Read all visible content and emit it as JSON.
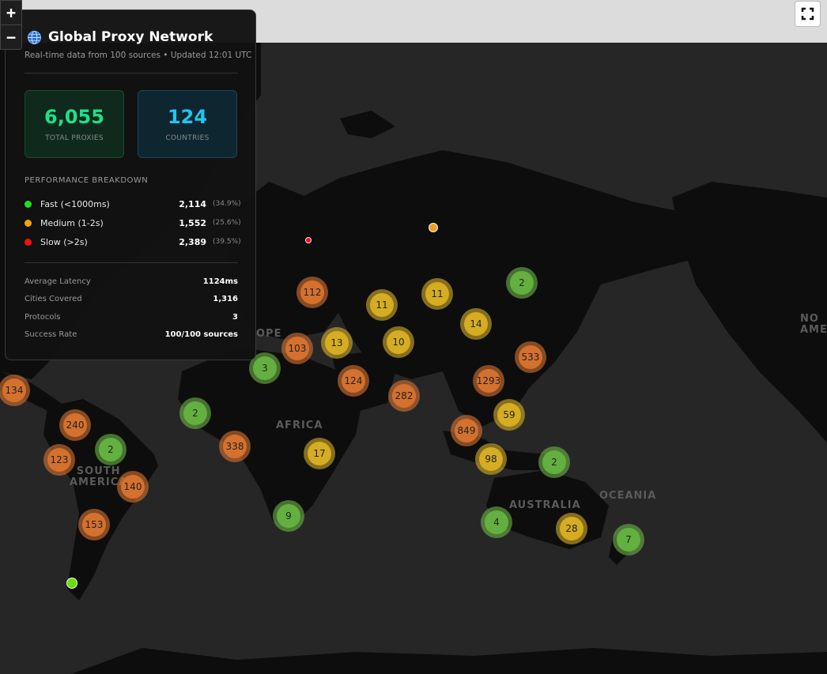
{
  "panel": {
    "title": "Global Proxy Network",
    "subtitle": "Real-time data from 100 sources • Updated 12:01 UTC",
    "stats": [
      {
        "value": "6,055",
        "label": "TOTAL PROXIES",
        "color": "#1ee08a"
      },
      {
        "value": "124",
        "label": "COUNTRIES",
        "color": "#22c4f0"
      }
    ],
    "performance_title": "PERFORMANCE BREAKDOWN",
    "performance": [
      {
        "label": "Fast (<1000ms)",
        "count": "2,114",
        "pct": "(34.9%)",
        "color": "#22dd22"
      },
      {
        "label": "Medium (1-2s)",
        "count": "1,552",
        "pct": "(25.6%)",
        "color": "#f2a20c"
      },
      {
        "label": "Slow (>2s)",
        "count": "2,389",
        "pct": "(39.5%)",
        "color": "#ee1111"
      }
    ],
    "info": [
      {
        "label": "Average Latency",
        "value": "1124ms"
      },
      {
        "label": "Cities Covered",
        "value": "1,316"
      },
      {
        "label": "Protocols",
        "value": "3"
      },
      {
        "label": "Success Rate",
        "value": "100/100 sources"
      }
    ]
  },
  "controls": {
    "zoom_in": "+",
    "zoom_out": "−"
  },
  "map_labels": {
    "europe": "OPE",
    "africa": "AFRICA",
    "south_america": "SOUTH\nAMERICA",
    "australia": "AUSTRALIA",
    "oceania": "OCEANIA",
    "north_america": "NO\nAME"
  },
  "clusters": [
    {
      "label": "112",
      "level": "slow"
    },
    {
      "label": "11",
      "level": "medium"
    },
    {
      "label": "11",
      "level": "medium"
    },
    {
      "label": "2",
      "level": "fast"
    },
    {
      "label": "14",
      "level": "medium"
    },
    {
      "label": "103",
      "level": "slow"
    },
    {
      "label": "13",
      "level": "medium"
    },
    {
      "label": "10",
      "level": "medium"
    },
    {
      "label": "533",
      "level": "slow"
    },
    {
      "label": "3",
      "level": "fast"
    },
    {
      "label": "124",
      "level": "slow"
    },
    {
      "label": "282",
      "level": "slow"
    },
    {
      "label": "1293",
      "level": "slow"
    },
    {
      "label": "134",
      "level": "slow"
    },
    {
      "label": "2",
      "level": "fast"
    },
    {
      "label": "59",
      "level": "medium"
    },
    {
      "label": "240",
      "level": "slow"
    },
    {
      "label": "849",
      "level": "slow"
    },
    {
      "label": "338",
      "level": "slow"
    },
    {
      "label": "17",
      "level": "medium"
    },
    {
      "label": "2",
      "level": "fast"
    },
    {
      "label": "123",
      "level": "slow"
    },
    {
      "label": "98",
      "level": "medium"
    },
    {
      "label": "2",
      "level": "fast"
    },
    {
      "label": "140",
      "level": "slow"
    },
    {
      "label": "9",
      "level": "fast"
    },
    {
      "label": "4",
      "level": "fast"
    },
    {
      "label": "28",
      "level": "medium"
    },
    {
      "label": "153",
      "level": "slow"
    },
    {
      "label": "7",
      "level": "fast"
    }
  ],
  "points": [
    {
      "level": "medium",
      "color": "#f0a020"
    },
    {
      "level": "slow",
      "color": "#ee1111"
    },
    {
      "level": "fast",
      "color": "#66dd11"
    }
  ]
}
